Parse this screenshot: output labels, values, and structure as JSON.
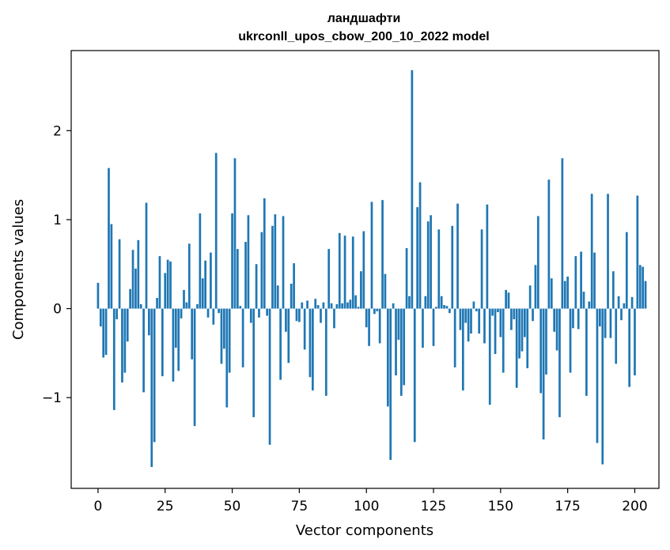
{
  "chart_data": {
    "type": "bar",
    "title_line1": "ландшафти",
    "title_line2": "ukrconll_upos_cbow_200_10_2022 model",
    "xlabel": "Vector components",
    "ylabel": "Components values",
    "xlim": [
      -10,
      209
    ],
    "ylim": [
      -2.02,
      2.9
    ],
    "x_ticks": [
      {
        "value": 0,
        "label": "0"
      },
      {
        "value": 25,
        "label": "25"
      },
      {
        "value": 50,
        "label": "50"
      },
      {
        "value": 75,
        "label": "75"
      },
      {
        "value": 100,
        "label": "100"
      },
      {
        "value": 125,
        "label": "125"
      },
      {
        "value": 150,
        "label": "150"
      },
      {
        "value": 175,
        "label": "175"
      },
      {
        "value": 200,
        "label": "200"
      }
    ],
    "y_ticks": [
      {
        "value": -1,
        "label": "−1"
      },
      {
        "value": 0,
        "label": "0"
      },
      {
        "value": 1,
        "label": "1"
      },
      {
        "value": 2,
        "label": "2"
      }
    ],
    "bar_color": "#1f77b4",
    "values": [
      0.29,
      -0.2,
      -0.55,
      -0.52,
      1.58,
      0.95,
      -1.14,
      -0.12,
      0.78,
      -0.83,
      -0.72,
      -0.37,
      0.22,
      0.66,
      0.45,
      0.77,
      0.05,
      -0.94,
      1.19,
      -0.3,
      -1.78,
      -1.5,
      0.12,
      0.59,
      -0.76,
      0.4,
      0.55,
      0.53,
      -0.82,
      -0.44,
      -0.7,
      -0.11,
      0.21,
      0.07,
      0.73,
      -0.57,
      -1.32,
      0.05,
      1.07,
      0.34,
      0.54,
      -0.1,
      0.63,
      -0.18,
      1.75,
      -0.05,
      -0.62,
      -0.45,
      -1.11,
      -0.72,
      1.07,
      1.69,
      0.67,
      0.03,
      -0.66,
      0.75,
      1.05,
      -0.16,
      -1.22,
      0.5,
      -0.1,
      0.86,
      1.24,
      -0.08,
      -1.53,
      0.93,
      1.06,
      0.26,
      -0.8,
      1.04,
      -0.26,
      -0.61,
      0.28,
      0.51,
      -0.14,
      -0.15,
      0.07,
      -0.46,
      0.09,
      -0.77,
      -0.92,
      0.11,
      0.04,
      -0.16,
      0.07,
      -0.98,
      0.67,
      0.06,
      -0.22,
      0.05,
      0.85,
      0.06,
      0.82,
      0.07,
      0.1,
      0.81,
      0.15,
      0.02,
      0.42,
      0.87,
      -0.21,
      -0.42,
      1.2,
      -0.06,
      -0.03,
      -0.39,
      1.22,
      0.39,
      -1.1,
      -1.7,
      0.06,
      -0.75,
      -0.35,
      -0.98,
      -0.86,
      0.68,
      0.14,
      2.68,
      -1.5,
      1.14,
      1.42,
      -0.44,
      0.14,
      0.98,
      1.05,
      -0.42,
      0.02,
      0.89,
      0.14,
      0.04,
      0.03,
      -0.05,
      0.93,
      -0.66,
      1.18,
      -0.24,
      -0.92,
      -0.16,
      -0.37,
      -0.28,
      0.08,
      -0.03,
      -0.28,
      0.89,
      -0.39,
      1.17,
      -1.08,
      -0.08,
      -0.51,
      -0.04,
      -0.32,
      -0.72,
      0.21,
      0.18,
      -0.24,
      -0.12,
      -0.89,
      -0.56,
      -0.48,
      -0.32,
      -0.67,
      0.26,
      -0.14,
      0.49,
      1.04,
      -0.95,
      -1.47,
      -0.74,
      1.45,
      0.34,
      -0.26,
      -0.47,
      -1.22,
      1.69,
      0.31,
      0.36,
      -0.72,
      -0.22,
      0.59,
      -0.23,
      0.64,
      0.19,
      -0.98,
      0.08,
      1.29,
      0.63,
      -1.51,
      -0.2,
      -1.75,
      -0.33,
      1.29,
      -0.33,
      0.42,
      -0.62,
      0.14,
      -0.13,
      0.06,
      0.86,
      -0.88,
      0.13,
      -0.75,
      1.27,
      0.49,
      0.47,
      0.31
    ]
  }
}
